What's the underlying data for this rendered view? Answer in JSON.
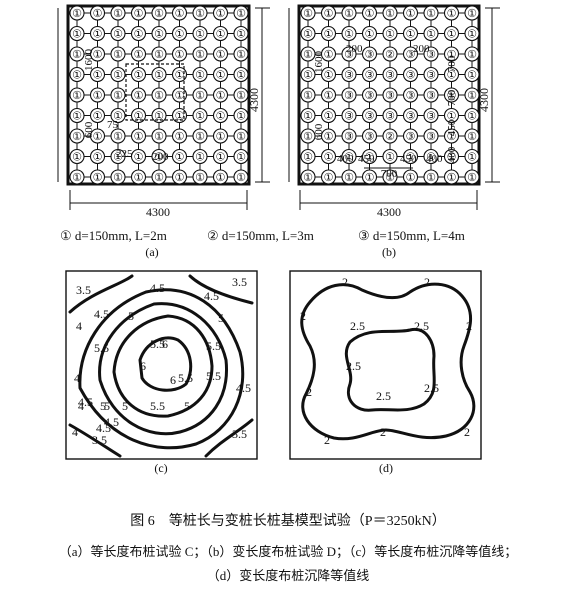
{
  "panelA": {
    "pile_label_main": "①",
    "pile_label_center": "①",
    "dim_1600": "1600",
    "dim_600": "600",
    "dim_75": "75",
    "dim_225": "225",
    "dim_200": "200",
    "width": "4300",
    "height": "4300",
    "label": "(a)"
  },
  "panelB": {
    "pile_label_outer": "①",
    "pile_label_2": "②",
    "pile_label_3": "③",
    "dim_1600": "1600",
    "dim_600": "600",
    "dim_200a": "200",
    "dim_200b": "200",
    "dim_700_right": "700",
    "dim_700_right2": "700",
    "dim_450_right": "450",
    "dim_400_right": "400",
    "dim_400a": "400",
    "dim_450a": "450",
    "dim_450b": "450",
    "dim_400b": "400",
    "dim_700_bottom": "700",
    "width": "4300",
    "height": "4300",
    "label": "(b)"
  },
  "legend": {
    "item1": "① d=150mm, L=2m",
    "item2": "② d=150mm, L=3m",
    "item3": "③ d=150mm, L=4m"
  },
  "panelC": {
    "label": "(c)",
    "contours": [
      "3.5",
      "4.5",
      "3.5",
      "4",
      "4.5",
      "5",
      "4.5",
      "5.5",
      "5",
      "5.5",
      "4",
      "6",
      "5.5",
      "5",
      "6",
      "5.5",
      "4.5",
      "6",
      "5.5",
      "4",
      "5",
      "5",
      "4.5",
      "4.5",
      "5",
      "3.5",
      "4",
      "5.5",
      "4.5",
      "3.5"
    ]
  },
  "panelD": {
    "label": "(d)",
    "contours": [
      "2",
      "2",
      "2",
      "2.5",
      "2.5",
      "2",
      "2.5",
      "2",
      "2.5",
      "2.5",
      "2",
      "2",
      "2"
    ]
  },
  "caption": {
    "title": "图 6　等桩长与变桩长桩基模型试验（P＝3250kN）",
    "line2": "（a）等长度布桩试验 C；（b）变长度布桩试验 D；（c）等长度布桩沉降等值线；",
    "line3": "（d）变长度布桩沉降等值线"
  }
}
